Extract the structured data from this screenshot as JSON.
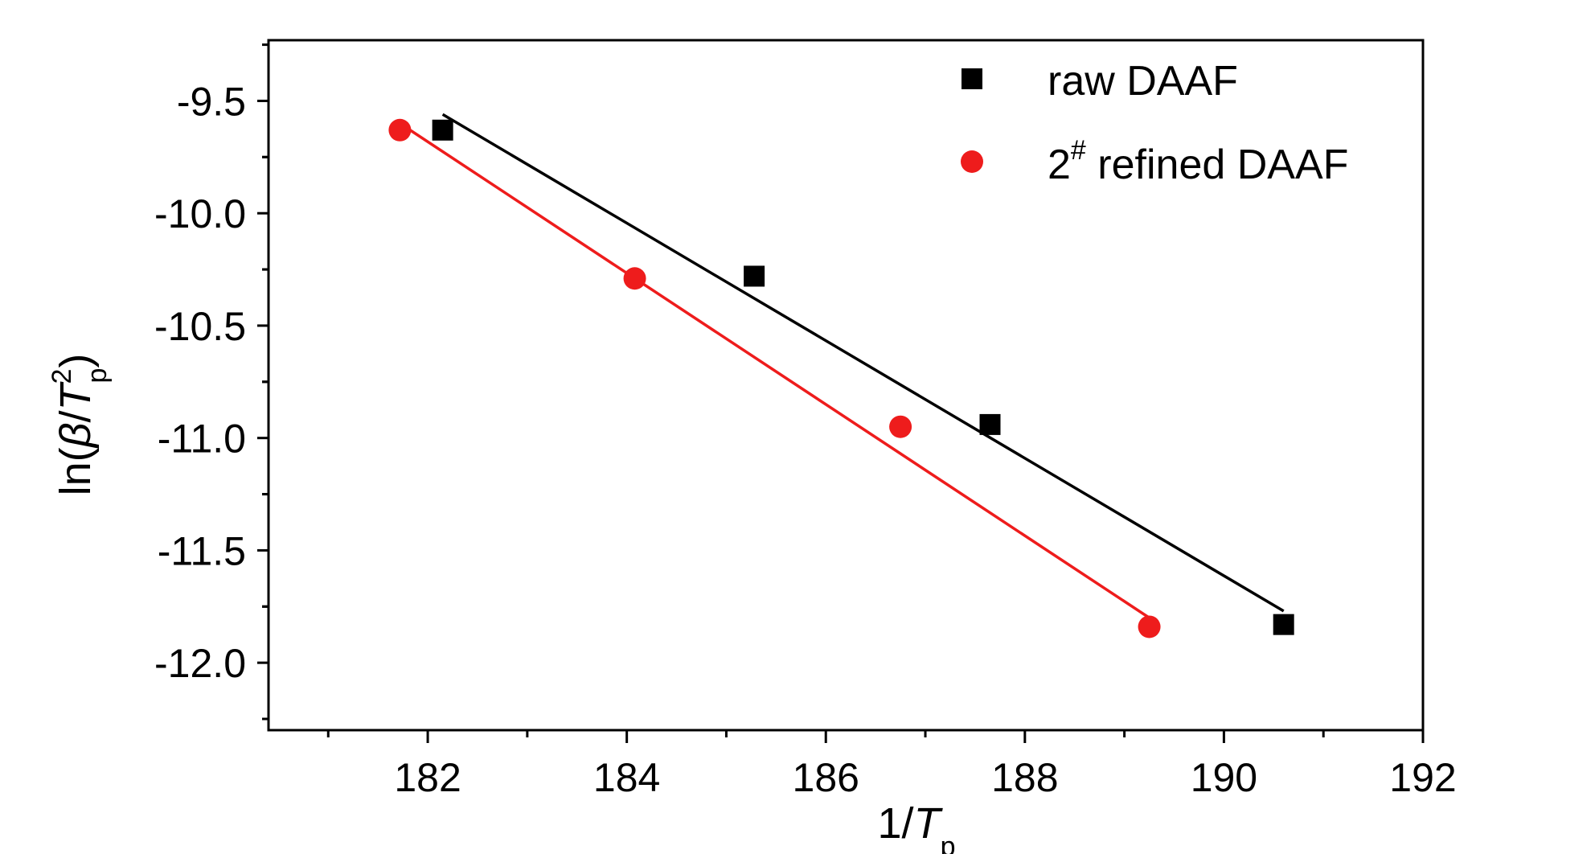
{
  "chart_data": {
    "type": "scatter",
    "xlabel": {
      "prefix": "1/",
      "italic": "T",
      "sub": "p"
    },
    "ylabel": {
      "prefix": "ln(",
      "greek": "β",
      "slash": "/",
      "italic": "T",
      "sup": "2",
      "sub": "p",
      "suffix": ")"
    },
    "xlim": [
      180.4,
      192
    ],
    "ylim": [
      -12.3,
      -9.23
    ],
    "xticks": [
      182,
      184,
      186,
      188,
      190,
      192
    ],
    "xtick_labels": [
      "182",
      "184",
      "186",
      "188",
      "190",
      "192"
    ],
    "yticks": [
      -9.5,
      -10.0,
      -10.5,
      -11.0,
      -11.5,
      -12.0
    ],
    "ytick_labels": [
      "-9.5",
      "-10.0",
      "-10.5",
      "-11.0",
      "-11.5",
      "-12.0"
    ],
    "grid": false,
    "legend_position": "top-right",
    "series": [
      {
        "name": "raw DAAF",
        "legend": {
          "main": "raw DAAF"
        },
        "marker": "square",
        "color": "#000000",
        "points": [
          [
            182.15,
            -9.63
          ],
          [
            185.28,
            -10.28
          ],
          [
            187.65,
            -10.94
          ],
          [
            190.6,
            -11.83
          ]
        ],
        "fit": [
          [
            182.15,
            -9.56
          ],
          [
            190.6,
            -11.77
          ]
        ]
      },
      {
        "name": "2# refined DAAF",
        "legend": {
          "main": "2",
          "sup": "#",
          "rest": " refined DAAF"
        },
        "marker": "circle",
        "color": "#ee1c1c",
        "points": [
          [
            181.72,
            -9.63
          ],
          [
            184.08,
            -10.29
          ],
          [
            186.75,
            -10.95
          ],
          [
            189.25,
            -11.84
          ]
        ],
        "fit": [
          [
            181.72,
            -9.6
          ],
          [
            189.25,
            -11.8
          ]
        ]
      }
    ]
  }
}
